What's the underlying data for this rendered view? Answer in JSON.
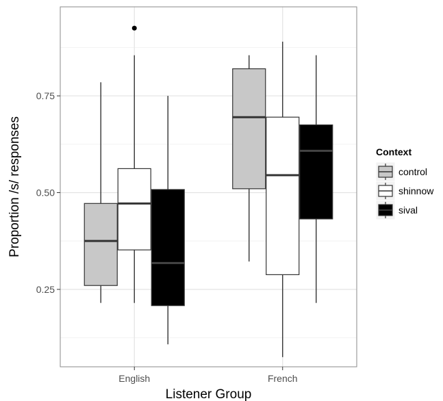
{
  "chart_data": {
    "type": "boxplot",
    "xlabel": "Listener Group",
    "ylabel": "Proportion /s/ responses",
    "ylim": [
      0.05,
      0.98
    ],
    "yticks": [
      0.25,
      0.5,
      0.75
    ],
    "ytick_labels": [
      "0.25",
      "0.50",
      "0.75"
    ],
    "categories": [
      "English",
      "French"
    ],
    "grid": true,
    "legend_position": "right",
    "legend": {
      "title": "Context",
      "entries": [
        {
          "label": "control",
          "color": "#c8c8c8"
        },
        {
          "label": "shinnow",
          "color": "#ffffff"
        },
        {
          "label": "sival",
          "color": "#000000"
        }
      ]
    },
    "series": [
      {
        "name": "control",
        "color": "#c8c8c8",
        "median_color": "#333333",
        "boxes": [
          {
            "category": "English",
            "whisker_low": 0.215,
            "q1": 0.26,
            "median": 0.375,
            "q3": 0.472,
            "whisker_high": 0.785,
            "outliers": []
          },
          {
            "category": "French",
            "whisker_low": 0.322,
            "q1": 0.51,
            "median": 0.695,
            "q3": 0.82,
            "whisker_high": 0.855,
            "outliers": []
          }
        ]
      },
      {
        "name": "shinnow",
        "color": "#ffffff",
        "median_color": "#333333",
        "boxes": [
          {
            "category": "English",
            "whisker_low": 0.215,
            "q1": 0.352,
            "median": 0.472,
            "q3": 0.562,
            "whisker_high": 0.855,
            "outliers": [
              0.925
            ]
          },
          {
            "category": "French",
            "whisker_low": 0.075,
            "q1": 0.288,
            "median": 0.545,
            "q3": 0.695,
            "whisker_high": 0.89,
            "outliers": []
          }
        ]
      },
      {
        "name": "sival",
        "color": "#000000",
        "median_color": "#444444",
        "boxes": [
          {
            "category": "English",
            "whisker_low": 0.108,
            "q1": 0.208,
            "median": 0.318,
            "q3": 0.508,
            "whisker_high": 0.75,
            "outliers": []
          },
          {
            "category": "French",
            "whisker_low": 0.215,
            "q1": 0.432,
            "median": 0.608,
            "q3": 0.675,
            "whisker_high": 0.855,
            "outliers": []
          }
        ]
      }
    ]
  }
}
